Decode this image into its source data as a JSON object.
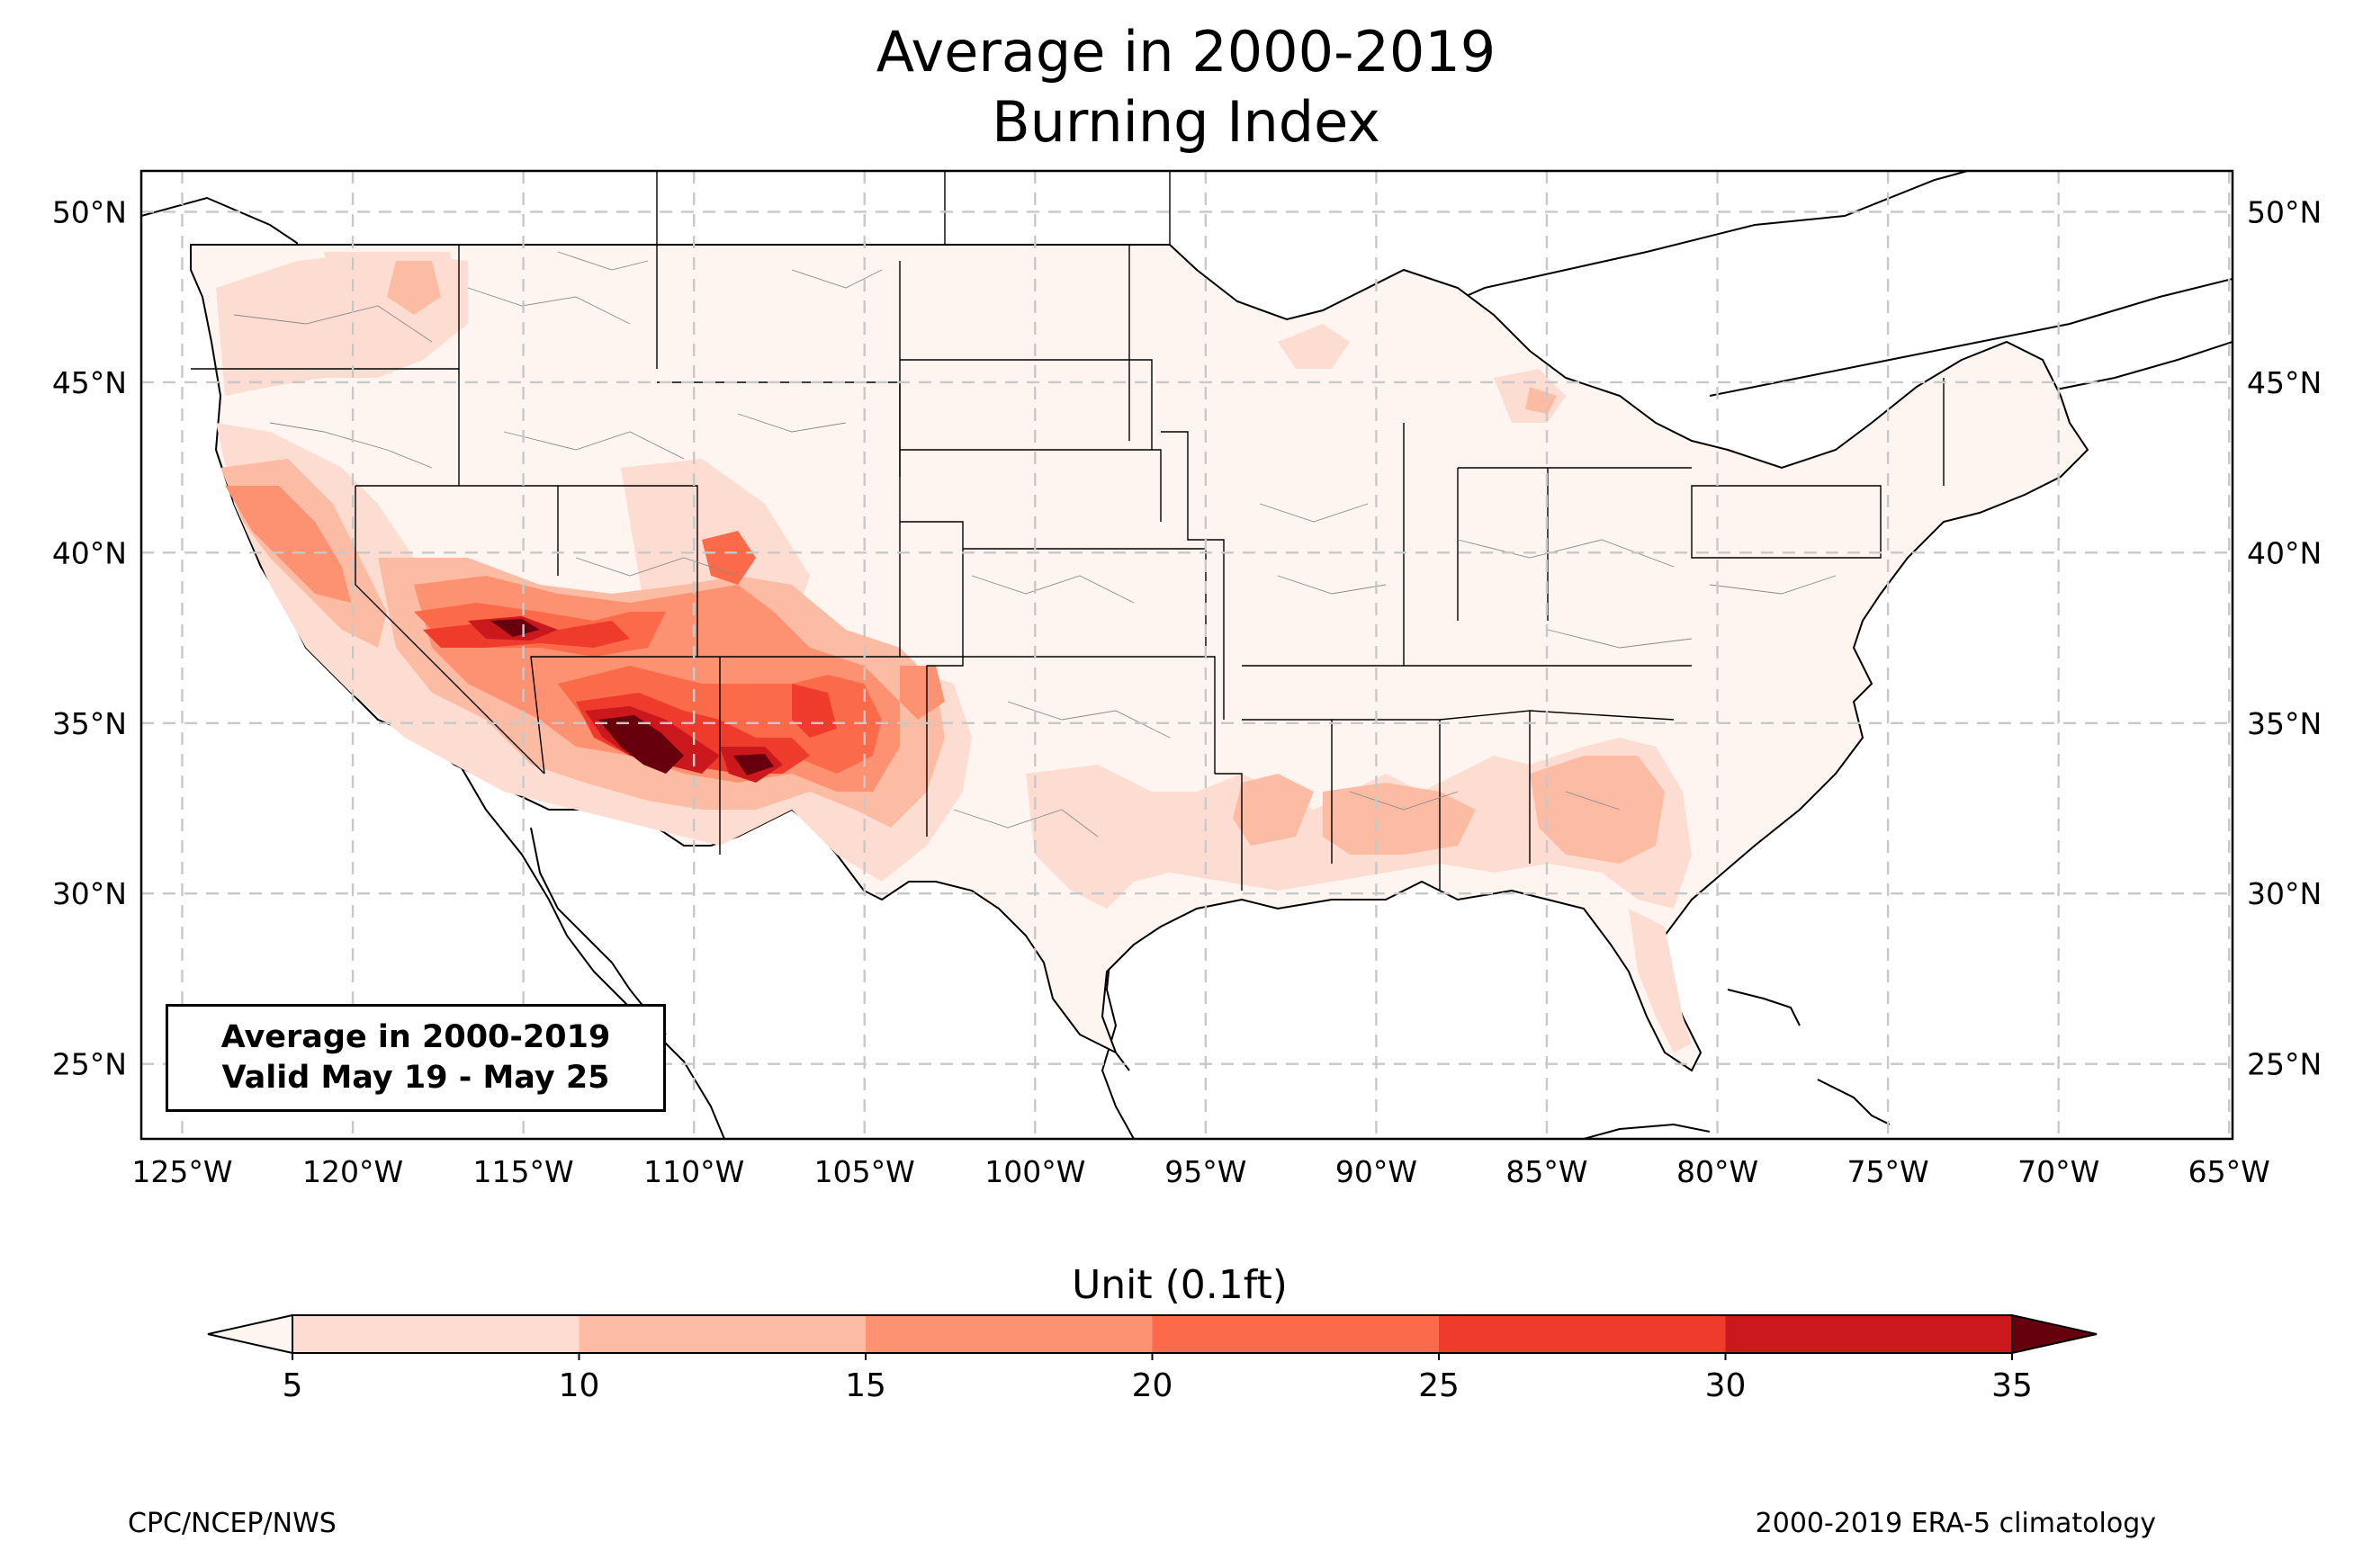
{
  "title": {
    "line1": "Average in 2000-2019",
    "line2": "Burning Index"
  },
  "info_box": {
    "line1": "Average in 2000-2019",
    "line2": "Valid May 19 - May 25"
  },
  "map": {
    "lon_ticks": [
      "125°W",
      "120°W",
      "115°W",
      "110°W",
      "105°W",
      "100°W",
      "95°W",
      "90°W",
      "85°W",
      "80°W",
      "75°W",
      "70°W",
      "65°W"
    ],
    "lat_ticks": [
      "50°N",
      "45°N",
      "40°N",
      "35°N",
      "30°N",
      "25°N"
    ],
    "lon_values": [
      -125,
      -120,
      -115,
      -110,
      -105,
      -100,
      -95,
      -90,
      -85,
      -80,
      -75,
      -70,
      -65
    ],
    "lat_values": [
      50,
      45,
      40,
      35,
      30,
      25
    ],
    "extent": {
      "lon": [
        -126.2,
        -64.9
      ],
      "lat": [
        22.8,
        51.2
      ]
    }
  },
  "colorbar": {
    "title": "Unit (0.1ft)",
    "ticks": [
      "5",
      "10",
      "15",
      "20",
      "25",
      "30",
      "35"
    ],
    "values": [
      5,
      10,
      15,
      20,
      25,
      30,
      35
    ],
    "colors": [
      "#fdddd1",
      "#fcbca4",
      "#fc9272",
      "#fb6b4a",
      "#ef3b2c",
      "#cb181d",
      "#a50f15"
    ],
    "under_color": "#fff5f0",
    "over_color": "#67000d"
  },
  "footer": {
    "left": "CPC/NCEP/NWS",
    "right": "2000-2019 ERA-5 climatology"
  }
}
